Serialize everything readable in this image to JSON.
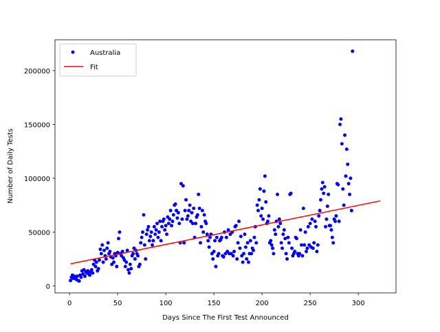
{
  "chart_data": {
    "type": "scatter",
    "xlabel": "Days Since The First Test Announced",
    "ylabel": "Number of Daily Tests",
    "xlim": [
      -15.1,
      339.2
    ],
    "ylim": [
      -6500,
      228600
    ],
    "xticks": [
      0,
      50,
      100,
      150,
      200,
      250,
      300
    ],
    "yticks": [
      0,
      50000,
      100000,
      150000,
      200000
    ],
    "legend": "upper left",
    "series": [
      {
        "name": "Australia",
        "type": "scatter",
        "color": "#0000ff",
        "x": [
          1,
          2,
          3,
          4,
          5,
          6,
          7,
          8,
          9,
          10,
          11,
          12,
          13,
          14,
          15,
          16,
          17,
          18,
          19,
          20,
          21,
          22,
          23,
          24,
          25,
          26,
          27,
          28,
          29,
          30,
          31,
          32,
          33,
          34,
          35,
          36,
          37,
          38,
          39,
          40,
          41,
          42,
          43,
          44,
          45,
          46,
          47,
          48,
          49,
          50,
          51,
          52,
          53,
          54,
          55,
          56,
          57,
          58,
          59,
          60,
          61,
          62,
          63,
          64,
          65,
          66,
          67,
          68,
          69,
          70,
          71,
          72,
          73,
          74,
          75,
          76,
          77,
          78,
          79,
          80,
          81,
          82,
          83,
          84,
          85,
          86,
          87,
          88,
          89,
          90,
          91,
          92,
          93,
          94,
          95,
          96,
          97,
          98,
          99,
          100,
          101,
          102,
          103,
          104,
          105,
          106,
          107,
          108,
          109,
          110,
          111,
          112,
          113,
          114,
          115,
          116,
          117,
          118,
          119,
          120,
          121,
          122,
          123,
          124,
          125,
          126,
          127,
          128,
          129,
          130,
          131,
          132,
          133,
          134,
          135,
          136,
          137,
          138,
          139,
          140,
          141,
          142,
          143,
          144,
          145,
          146,
          147,
          148,
          149,
          150,
          151,
          152,
          153,
          154,
          155,
          156,
          157,
          158,
          159,
          160,
          161,
          162,
          163,
          164,
          165,
          166,
          167,
          168,
          169,
          170,
          171,
          172,
          173,
          174,
          175,
          176,
          177,
          178,
          179,
          180,
          181,
          182,
          183,
          184,
          185,
          186,
          187,
          188,
          189,
          190,
          191,
          192,
          193,
          194,
          195,
          196,
          197,
          198,
          199,
          200,
          201,
          202,
          203,
          204,
          205,
          206,
          207,
          208,
          209,
          210,
          211,
          212,
          213,
          214,
          215,
          216,
          217,
          218,
          219,
          220,
          221,
          222,
          223,
          224,
          225,
          226,
          227,
          228,
          229,
          230,
          231,
          232,
          233,
          234,
          235,
          236,
          237,
          238,
          239,
          240,
          241,
          242,
          243,
          244,
          245,
          246,
          247,
          248,
          249,
          250,
          251,
          252,
          253,
          254,
          255,
          256,
          257,
          258,
          259,
          260,
          261,
          262,
          263,
          264,
          265,
          266,
          267,
          268,
          269,
          270,
          271,
          272,
          273,
          274,
          275,
          276,
          277,
          278,
          279,
          280,
          281,
          282,
          283,
          284,
          285,
          286,
          287,
          288,
          289,
          290,
          291,
          292,
          293,
          294
        ],
        "values": [
          5000,
          8000,
          10000,
          7000,
          9000,
          8000,
          6000,
          9000,
          5000,
          4500,
          10000,
          8000,
          14000,
          11000,
          15000,
          9000,
          13000,
          12000,
          14000,
          11000,
          10000,
          13000,
          15000,
          12000,
          20000,
          24000,
          18000,
          22000,
          14000,
          16000,
          24000,
          34000,
          30000,
          38000,
          22000,
          33000,
          28000,
          25000,
          35000,
          40000,
          30000,
          32000,
          27000,
          20000,
          26000,
          22000,
          30000,
          28000,
          18000,
          31000,
          44000,
          50000,
          30000,
          28000,
          32000,
          26000,
          24000,
          18000,
          22000,
          33000,
          15000,
          12000,
          20000,
          16000,
          28000,
          30000,
          35000,
          25000,
          33000,
          30000,
          28000,
          18000,
          20000,
          40000,
          45000,
          50000,
          66000,
          38000,
          25000,
          48000,
          52000,
          55000,
          42000,
          46000,
          50000,
          38000,
          42000,
          55000,
          48000,
          52000,
          58000,
          45000,
          50000,
          60000,
          42000,
          55000,
          60000,
          62000,
          52000,
          56000,
          48000,
          64000,
          58000,
          62000,
          70000,
          56000,
          60000,
          66000,
          75000,
          76000,
          70000,
          63000,
          68000,
          58000,
          40000,
          95000,
          62000,
          93000,
          40000,
          70000,
          80000,
          62000,
          65000,
          70000,
          75000,
          60000,
          68000,
          58000,
          72000,
          45000,
          58000,
          64000,
          66000,
          85000,
          72000,
          40000,
          55000,
          70000,
          50000,
          66000,
          60000,
          58000,
          48000,
          42000,
          36000,
          45000,
          48000,
          30000,
          25000,
          32000,
          42000,
          18000,
          45000,
          28000,
          30000,
          42000,
          43000,
          45000,
          28000,
          27000,
          50000,
          30000,
          45000,
          32000,
          52000,
          30000,
          48000,
          30000,
          50000,
          28000,
          32000,
          55000,
          56000,
          25000,
          40000,
          60000,
          35000,
          46000,
          28000,
          22000,
          30000,
          48000,
          36000,
          25000,
          40000,
          22000,
          30000,
          42000,
          30000,
          35000,
          33000,
          45000,
          55000,
          40000,
          75000,
          70000,
          80000,
          90000,
          65000,
          72000,
          62000,
          88000,
          102000,
          78000,
          58000,
          60000,
          65000,
          40000,
          42000,
          38000,
          35000,
          30000,
          52000,
          48000,
          60000,
          85000,
          55000,
          62000,
          58000,
          40000,
          35000,
          48000,
          52000,
          44000,
          30000,
          25000,
          45000,
          40000,
          85000,
          86000,
          35000,
          28000,
          30000,
          32000,
          45000,
          44000,
          30000,
          28000,
          30000,
          52000,
          38000,
          28000,
          72000,
          38000,
          50000,
          32000,
          35000,
          55000,
          38000,
          58000,
          36000,
          62000,
          35000,
          40000,
          60000,
          55000,
          32000,
          38000,
          65000,
          70000,
          80000,
          90000,
          96000,
          86000,
          92000,
          55000,
          62000,
          74000,
          85000,
          56000,
          56000,
          52000,
          45000,
          40000,
          62000,
          60000,
          65000,
          95000,
          94000,
          60000,
          150000,
          155000,
          132000,
          90000,
          75000,
          140000,
          102000,
          127000,
          113000,
          95000,
          85000,
          100000,
          70000,
          218000
        ]
      },
      {
        "name": "Fit",
        "type": "line",
        "color": "#ff0000",
        "x": [
          1,
          323
        ],
        "values": [
          20500,
          79000
        ]
      }
    ]
  }
}
